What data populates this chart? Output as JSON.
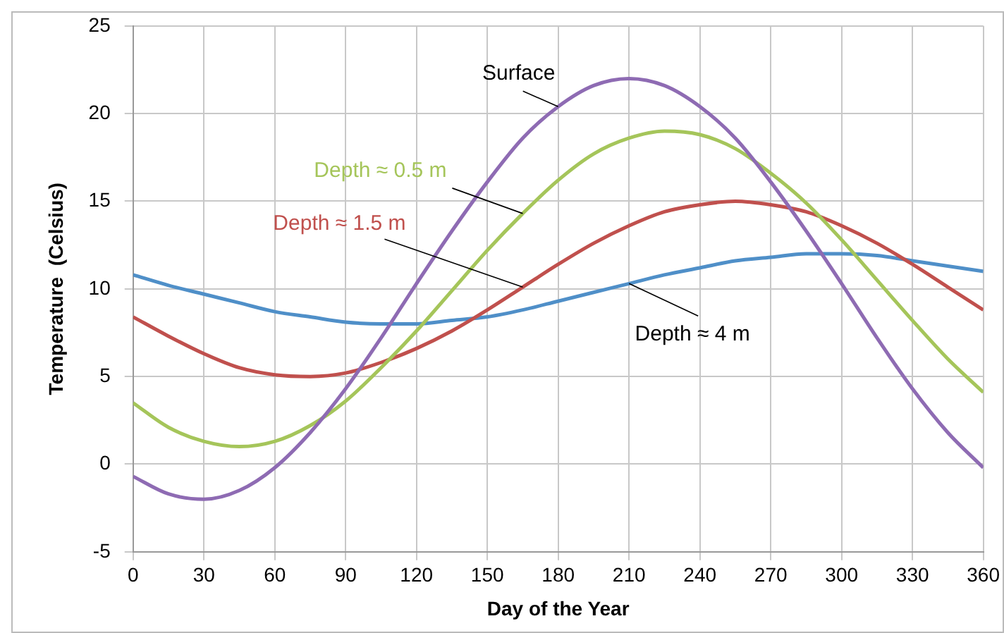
{
  "chart_data": {
    "type": "line",
    "xlabel": "Day of the Year",
    "ylabel": "Temperature  (Celsius)",
    "x": [
      0,
      15,
      30,
      45,
      60,
      75,
      90,
      105,
      120,
      135,
      150,
      165,
      180,
      195,
      210,
      225,
      240,
      255,
      270,
      285,
      300,
      315,
      330,
      345,
      360
    ],
    "series": [
      {
        "name": "Surface",
        "color": "#8e6bb3",
        "values": [
          -0.7,
          -1.7,
          -2.0,
          -1.5,
          -0.2,
          1.8,
          4.3,
          7.2,
          10.3,
          13.3,
          16.1,
          18.6,
          20.4,
          21.6,
          22.0,
          21.6,
          20.4,
          18.6,
          16.1,
          13.3,
          10.3,
          7.2,
          4.3,
          1.8,
          -0.2
        ]
      },
      {
        "name": "Depth ≈ 0.5 m",
        "color": "#a5c55a",
        "values": [
          3.5,
          2.1,
          1.3,
          1.0,
          1.3,
          2.2,
          3.6,
          5.5,
          7.6,
          9.9,
          12.2,
          14.3,
          16.2,
          17.7,
          18.6,
          19.0,
          18.8,
          18.0,
          16.6,
          14.9,
          12.8,
          10.5,
          8.2,
          6.0,
          4.1
        ]
      },
      {
        "name": "Depth ≈ 1.5 m",
        "color": "#c0504d",
        "values": [
          8.4,
          7.3,
          6.3,
          5.5,
          5.1,
          5.0,
          5.2,
          5.8,
          6.6,
          7.6,
          8.8,
          10.1,
          11.4,
          12.6,
          13.6,
          14.4,
          14.8,
          15.0,
          14.8,
          14.4,
          13.6,
          12.6,
          11.4,
          10.1,
          8.8
        ]
      },
      {
        "name": "Depth ≈ 4 m",
        "color": "#4f8fc8",
        "values": [
          10.8,
          10.2,
          9.7,
          9.2,
          8.7,
          8.4,
          8.1,
          8.0,
          8.0,
          8.2,
          8.4,
          8.8,
          9.3,
          9.8,
          10.3,
          10.8,
          11.2,
          11.6,
          11.8,
          12.0,
          12.0,
          11.9,
          11.6,
          11.3,
          11.0
        ]
      }
    ],
    "xlim": [
      0,
      360
    ],
    "xticks": [
      0,
      30,
      60,
      90,
      120,
      150,
      180,
      210,
      240,
      270,
      300,
      330,
      360
    ],
    "ylim": [
      -5,
      25
    ],
    "yticks": [
      -5,
      0,
      5,
      10,
      15,
      20,
      25
    ],
    "grid": true,
    "legend": false,
    "marker": "none",
    "line_style": "solid"
  }
}
